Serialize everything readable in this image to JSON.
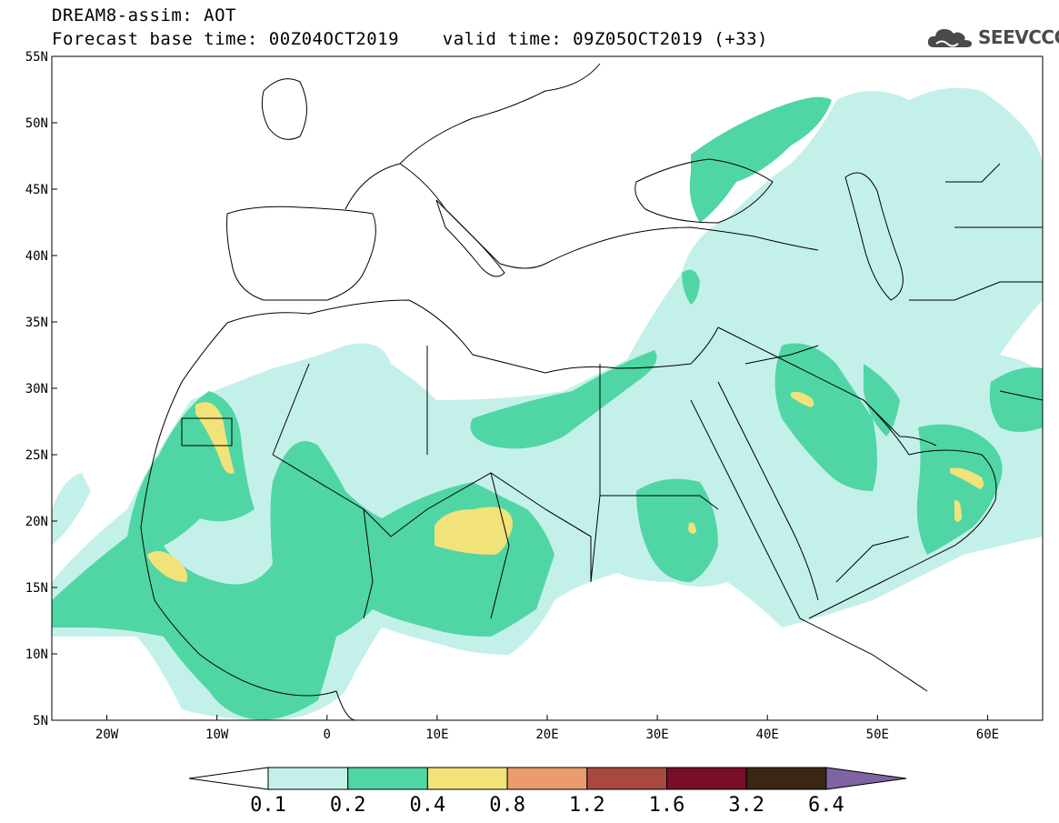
{
  "header": {
    "title_line1": "DREAM8-assim: AOT",
    "title_line2": "Forecast base time: 00Z04OCT2019    valid time: 09Z05OCT2019 (+33)",
    "logo_text": "SEEVCCC",
    "logo_icon": "cloud-icon"
  },
  "map": {
    "lat_labels": [
      "55N",
      "50N",
      "45N",
      "40N",
      "35N",
      "30N",
      "25N",
      "20N",
      "15N",
      "10N",
      "5N"
    ],
    "lon_labels": [
      "20W",
      "10W",
      "0",
      "10E",
      "20E",
      "30E",
      "40E",
      "50E",
      "60E"
    ],
    "lat_range": [
      5,
      55
    ],
    "lon_range": [
      -25,
      65
    ],
    "land_outline_color": "#000000",
    "background": "#ffffff"
  },
  "colorbar": {
    "labels": [
      "0.1",
      "0.2",
      "0.4",
      "0.8",
      "1.2",
      "1.6",
      "3.2",
      "6.4"
    ],
    "colors": [
      "#ffffff",
      "#c4f0ea",
      "#4fd6a4",
      "#f2e27a",
      "#ea9c6c",
      "#a8493f",
      "#7a0d2a",
      "#3a2713",
      "#7f63a3"
    ]
  }
}
